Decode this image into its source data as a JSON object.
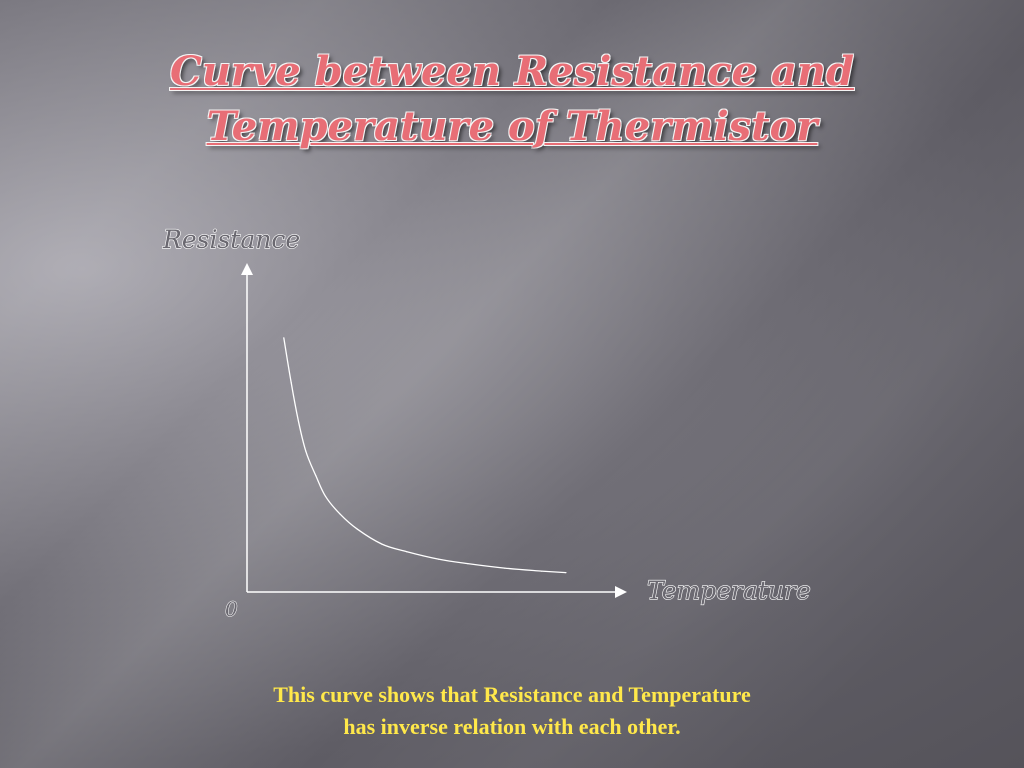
{
  "slide": {
    "title_lines": [
      "Curve between Resistance and",
      "Temperature of Thermistor"
    ],
    "caption_lines": [
      "This curve shows that Resistance and Temperature",
      "has inverse relation with each other."
    ],
    "colors": {
      "title": "#e86e76",
      "caption": "#ffe84a",
      "axis": "#ffffff",
      "curve": "#ffffff"
    }
  },
  "chart_data": {
    "type": "line",
    "title": "Curve between Resistance and Temperature of Thermistor",
    "xlabel": "Temperature",
    "ylabel": "Resistance",
    "origin_label": "0",
    "x": [
      0.15,
      0.18,
      0.21,
      0.24,
      0.28,
      0.32,
      0.38,
      0.45,
      0.55,
      0.65,
      0.78,
      0.9,
      1.05,
      1.2,
      1.3
    ],
    "y": [
      0.85,
      0.7,
      0.57,
      0.47,
      0.39,
      0.32,
      0.26,
      0.21,
      0.16,
      0.135,
      0.11,
      0.095,
      0.08,
      0.07,
      0.065
    ],
    "xlim": [
      0,
      1.5
    ],
    "ylim": [
      0,
      1.1
    ],
    "grid": false,
    "legend": false
  }
}
